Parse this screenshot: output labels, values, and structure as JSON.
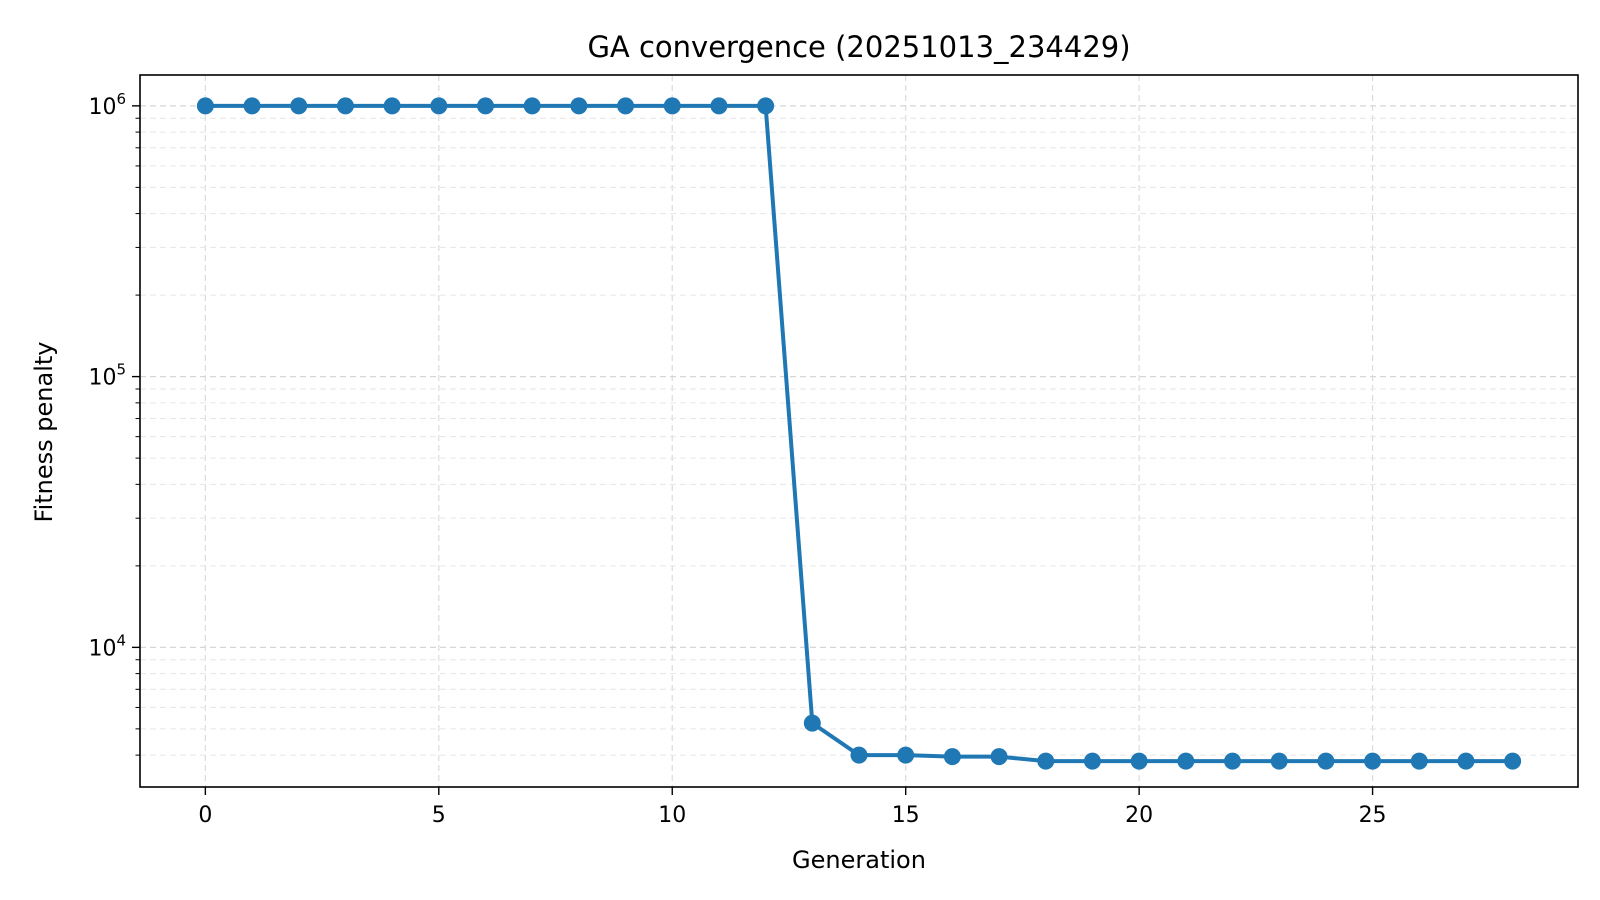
{
  "chart_data": {
    "type": "line",
    "title": "GA convergence (20251013_234429)",
    "xlabel": "Generation",
    "ylabel": "Fitness penalty",
    "yscale": "log",
    "xlim": [
      -1.4,
      29.4
    ],
    "ylim": [
      3050,
      1300000
    ],
    "grid": true,
    "legend": "none",
    "x_ticks": [
      0,
      5,
      10,
      15,
      20,
      25
    ],
    "x_tick_labels": [
      "0",
      "5",
      "10",
      "15",
      "20",
      "25"
    ],
    "y_ticks": [
      {
        "value": 1000000,
        "base": "10",
        "exp": "6"
      },
      {
        "value": 100000,
        "base": "10",
        "exp": "5"
      },
      {
        "value": 10000,
        "base": "10",
        "exp": "4"
      }
    ],
    "line_color": "#1f77b4",
    "series": [
      {
        "x": [
          0,
          1,
          2,
          3,
          4,
          5,
          6,
          7,
          8,
          9,
          10,
          11,
          12,
          13,
          14,
          15,
          16,
          17,
          18,
          19,
          20,
          21,
          22,
          23,
          24,
          25,
          26,
          27,
          28
        ],
        "values": [
          1000000,
          1000000,
          1000000,
          1000000,
          1000000,
          1000000,
          1000000,
          1000000,
          1000000,
          1000000,
          1000000,
          1000000,
          1000000,
          5250,
          4000,
          4000,
          3950,
          3950,
          3800,
          3800,
          3800,
          3800,
          3800,
          3800,
          3800,
          3800,
          3800,
          3800,
          3800
        ]
      }
    ]
  }
}
